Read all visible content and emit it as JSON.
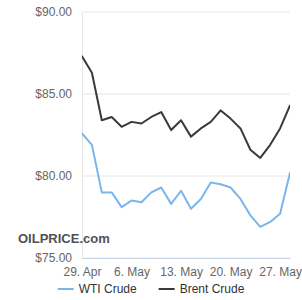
{
  "chart_data": {
    "type": "line",
    "categories": [
      "29. Apr",
      null,
      null,
      null,
      null,
      "6. May",
      null,
      null,
      null,
      null,
      "13. May",
      null,
      null,
      null,
      null,
      "20. May",
      null,
      null,
      null,
      null,
      "27. May",
      null
    ],
    "series": [
      {
        "name": "WTI Crude",
        "color": "#7cb5ec",
        "values": [
          82.6,
          81.9,
          79.0,
          79.0,
          78.1,
          78.5,
          78.4,
          79.0,
          79.3,
          78.3,
          79.1,
          78.0,
          78.6,
          79.6,
          79.5,
          79.3,
          78.6,
          77.6,
          76.9,
          77.2,
          77.7,
          80.2
        ]
      },
      {
        "name": "Brent Crude",
        "color": "#3a3a3a",
        "values": [
          87.3,
          86.3,
          83.4,
          83.6,
          83.0,
          83.3,
          83.2,
          83.6,
          83.9,
          82.8,
          83.4,
          82.4,
          82.9,
          83.3,
          84.0,
          83.5,
          82.9,
          81.6,
          81.1,
          81.9,
          82.9,
          84.3
        ]
      }
    ],
    "ylim": [
      75,
      90
    ],
    "yticks": [
      {
        "value": 75,
        "label": "$75.00"
      },
      {
        "value": 80,
        "label": "$80.00"
      },
      {
        "value": 85,
        "label": "$85.00"
      },
      {
        "value": 90,
        "label": "$90.00"
      }
    ],
    "grid": true,
    "legend": "bottom",
    "annotations": [
      "OILPRICE.com"
    ]
  }
}
